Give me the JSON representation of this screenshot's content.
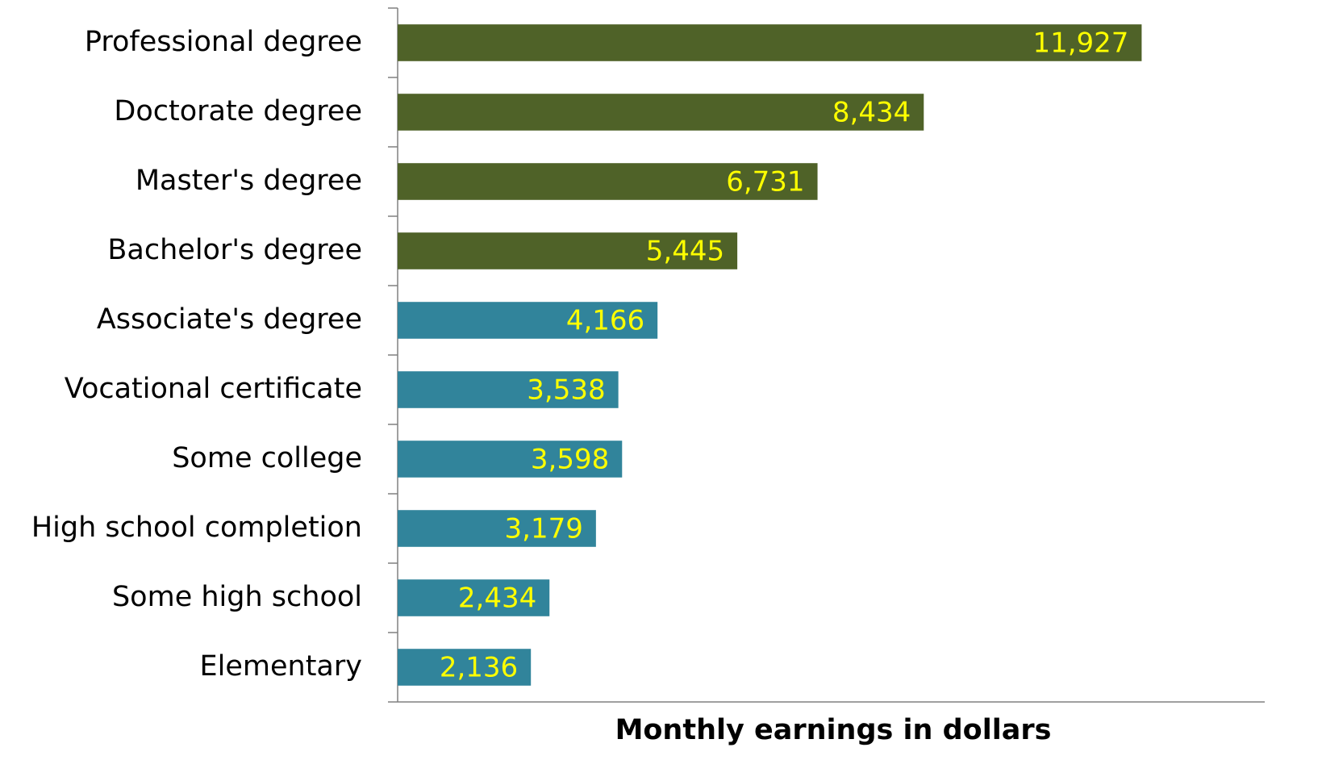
{
  "chart_data": {
    "type": "bar",
    "orientation": "horizontal",
    "x_label": "Monthly earnings in dollars",
    "categories": [
      "Professional degree",
      "Doctorate degree",
      "Master's degree",
      "Bachelor's degree",
      "Associate's degree",
      "Vocational certificate",
      "Some college",
      "High school completion",
      "Some high school",
      "Elementary"
    ],
    "values": [
      11927,
      8434,
      6731,
      5445,
      4166,
      3538,
      3598,
      3179,
      2434,
      2136
    ],
    "value_labels": [
      "11,927",
      "8,434",
      "6,731",
      "5,445",
      "4,166",
      "3,538",
      "3,598",
      "3,179",
      "2,434",
      "2,136"
    ],
    "colors": [
      "#4f6228",
      "#4f6228",
      "#4f6228",
      "#4f6228",
      "#31849b",
      "#31849b",
      "#31849b",
      "#31849b",
      "#31849b",
      "#31849b"
    ],
    "value_label_color": "#ffff00",
    "xlim": [
      0,
      13900
    ]
  }
}
